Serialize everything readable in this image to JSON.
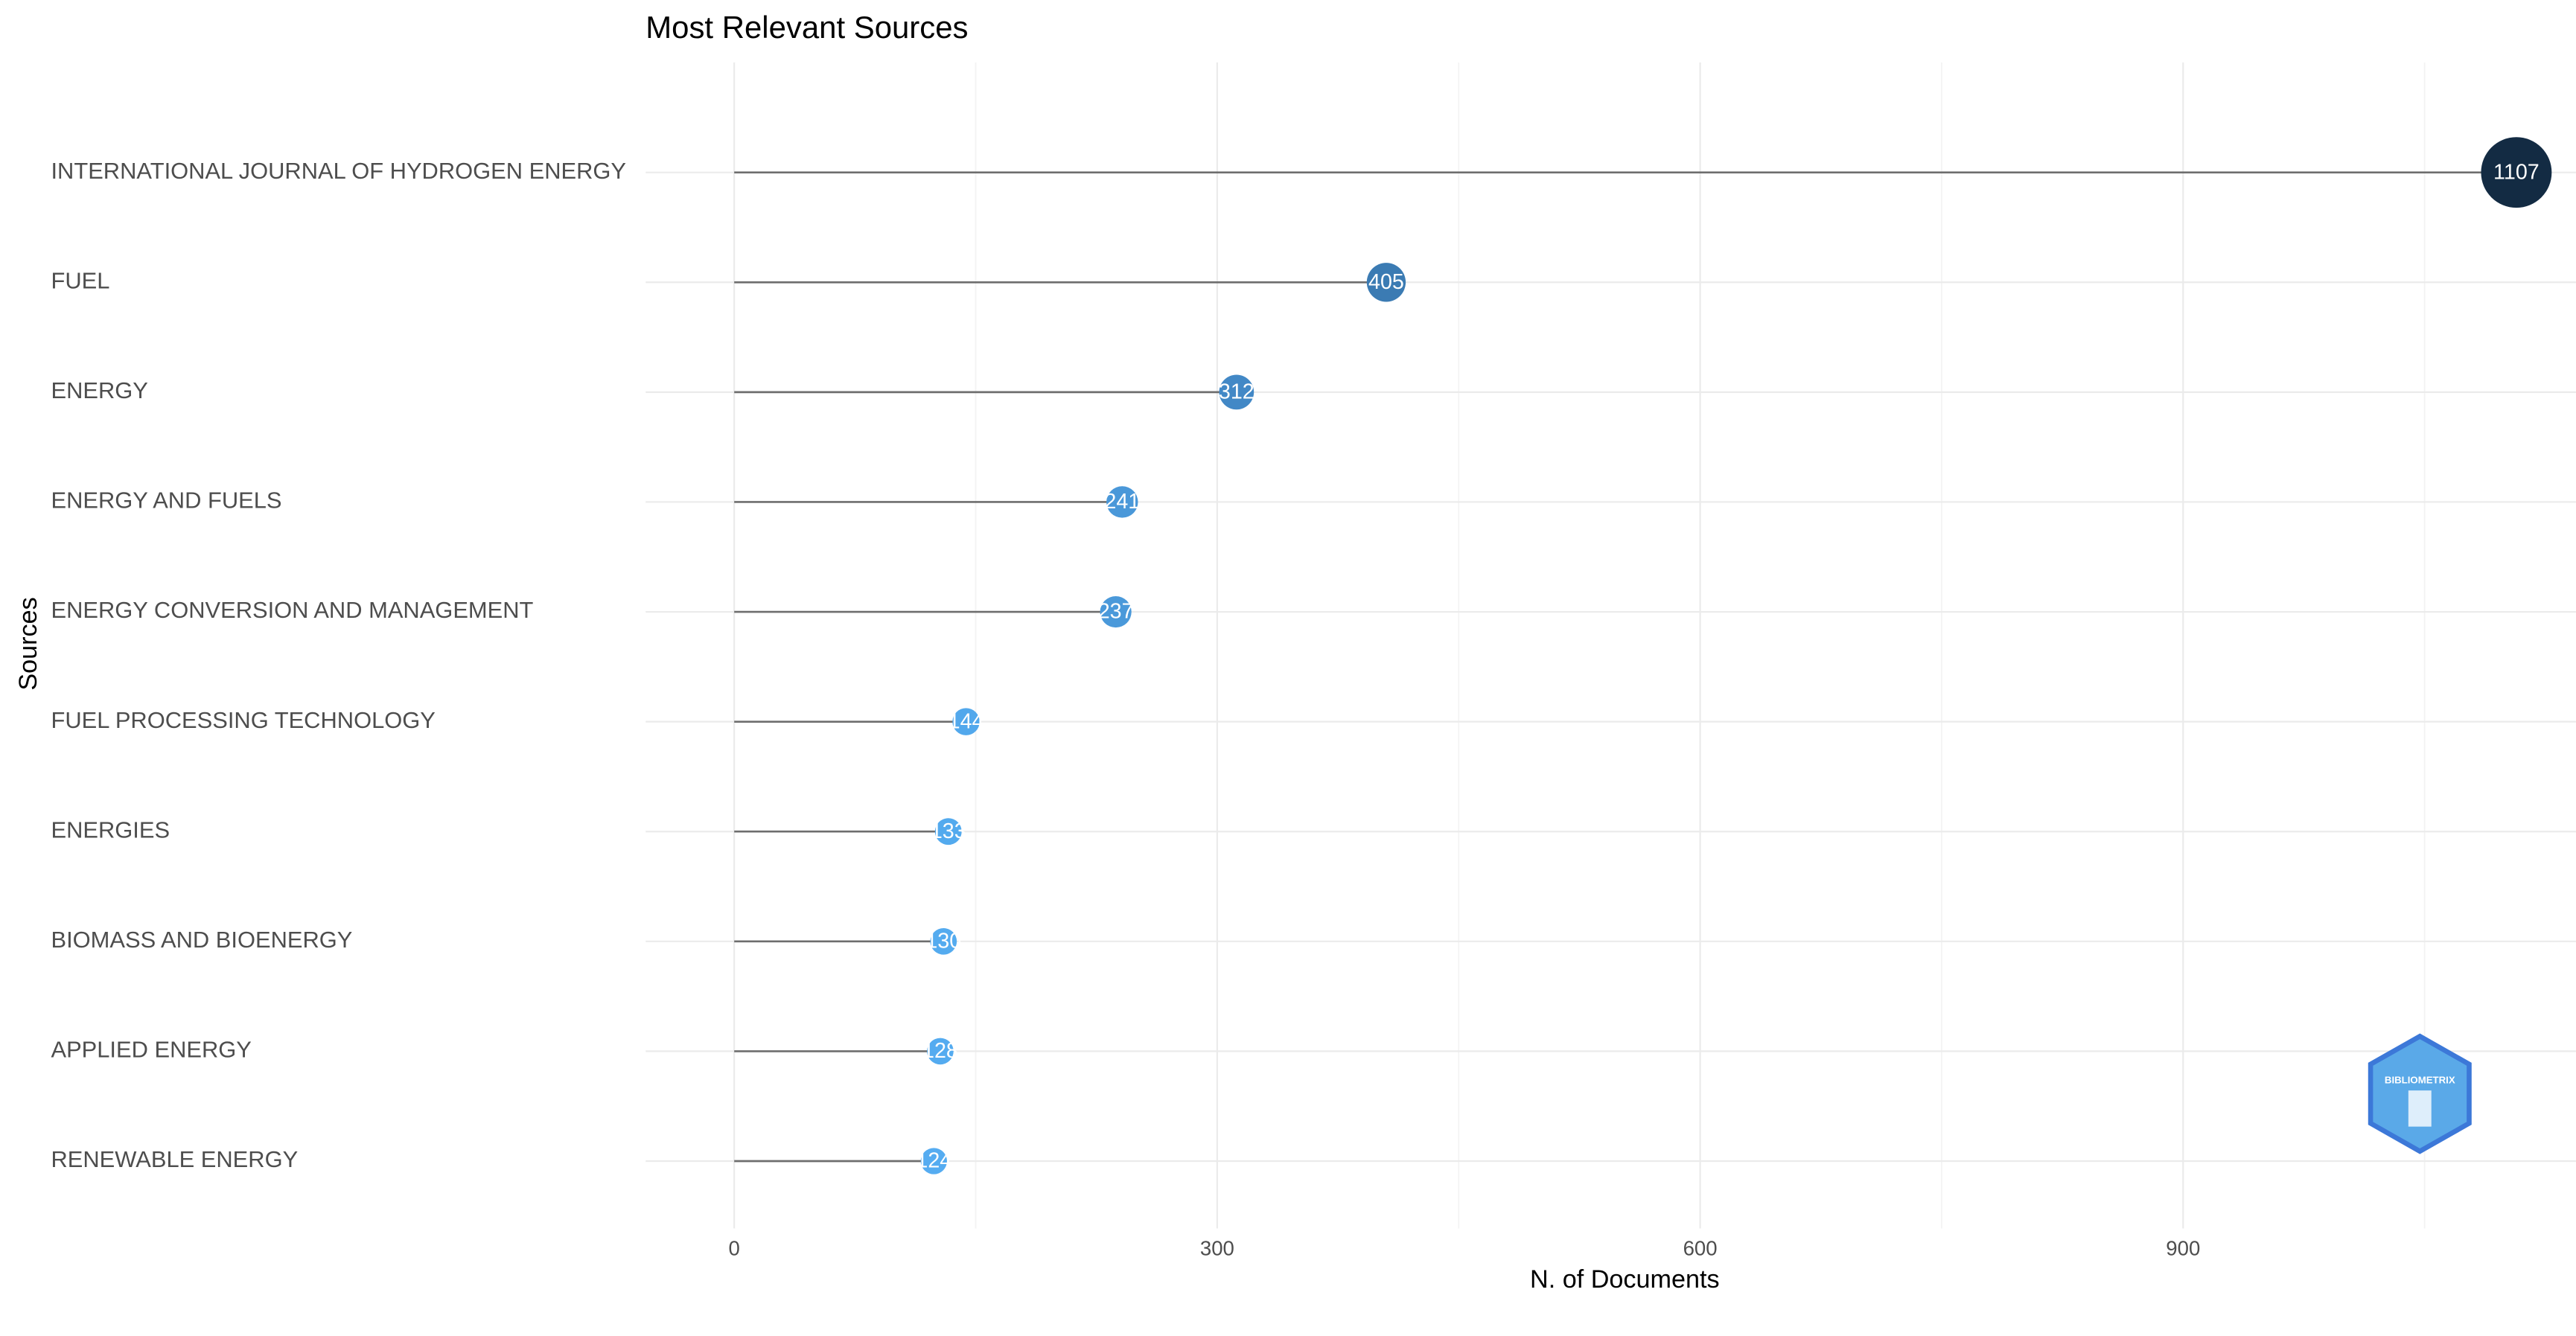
{
  "chart_data": {
    "type": "lollipop",
    "title": "Most Relevant Sources",
    "x_label": "N. of Documents",
    "y_label": "Sources",
    "categories": [
      "INTERNATIONAL JOURNAL OF HYDROGEN ENERGY",
      "FUEL",
      "ENERGY",
      "ENERGY AND FUELS",
      "ENERGY CONVERSION AND MANAGEMENT",
      "FUEL PROCESSING TECHNOLOGY",
      "ENERGIES",
      "BIOMASS AND BIOENERGY",
      "APPLIED ENERGY",
      "RENEWABLE ENERGY"
    ],
    "values": [
      1107,
      405,
      312,
      241,
      237,
      144,
      133,
      130,
      128,
      124
    ],
    "colors": [
      "#132b43",
      "#3b7bb3",
      "#4288c6",
      "#4a98d9",
      "#4a99da",
      "#52a8ec",
      "#53aaee",
      "#54abef",
      "#54abf0",
      "#55acf1"
    ],
    "stem_color": "#6e6e6e",
    "xlim": [
      -55,
      1144
    ],
    "xticks": [
      0,
      300,
      600,
      900
    ],
    "x_minor_grid": [
      150,
      450,
      750,
      1050
    ],
    "grid": true,
    "logo_text": "BIBLIOMETRIX"
  }
}
